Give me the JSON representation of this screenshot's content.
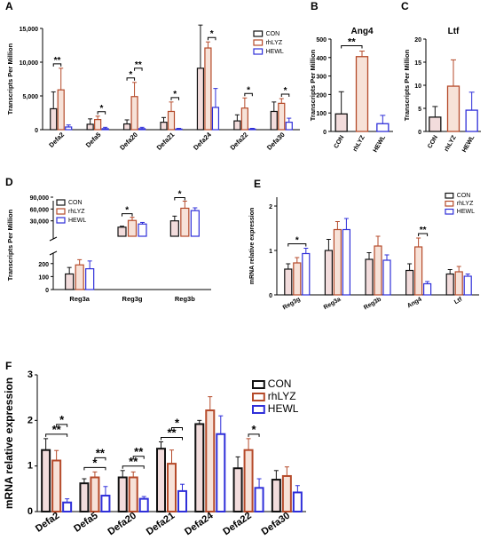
{
  "colors": {
    "CON": "#111111",
    "rhLYZ": "#b54a2a",
    "HEWL": "#2f2fd9",
    "conFill": "#f2dcdc",
    "lyzFill": "#f7e2d8"
  },
  "panels": {
    "A": {
      "letter": "A",
      "chart_data": {
        "type": "bar",
        "title": "",
        "ylabel": "Transcripts Per Million",
        "categories": [
          "Defa2",
          "Defa5",
          "Defa20",
          "Defa21",
          "Defa24",
          "Defa22",
          "Defa30"
        ],
        "yticks": [
          "0",
          "5,000",
          "10,000",
          "15,000"
        ],
        "ylim": [
          0,
          15000
        ],
        "legend": [
          "CON",
          "rhLYZ",
          "HEWL"
        ],
        "legend_position": "top-right",
        "series": [
          {
            "name": "CON",
            "values": [
              3100,
              800,
              850,
              1100,
              9100,
              1300,
              2700
            ],
            "errors": [
              2500,
              800,
              600,
              700,
              6400,
              900,
              1400
            ]
          },
          {
            "name": "rhLYZ",
            "values": [
              5900,
              1500,
              4900,
              2700,
              12100,
              3200,
              3900
            ],
            "errors": [
              3200,
              500,
              2100,
              1400,
              900,
              1500,
              700
            ]
          },
          {
            "name": "HEWL",
            "values": [
              400,
              150,
              150,
              100,
              3300,
              100,
              1100
            ],
            "errors": [
              300,
              200,
              200,
              100,
              2800,
              100,
              600
            ]
          }
        ],
        "significance": [
          {
            "cat": 0,
            "from": 0,
            "to": 1,
            "label": "**"
          },
          {
            "cat": 1,
            "from": 1,
            "to": 2,
            "label": "*"
          },
          {
            "cat": 2,
            "from": 0,
            "to": 1,
            "label": "*"
          },
          {
            "cat": 2,
            "from": 1,
            "to": 2,
            "label": "**"
          },
          {
            "cat": 3,
            "from": 1,
            "to": 2,
            "label": "*"
          },
          {
            "cat": 4,
            "from": 1,
            "to": 2,
            "label": "*"
          },
          {
            "cat": 5,
            "from": 1,
            "to": 2,
            "label": "*"
          },
          {
            "cat": 6,
            "from": 1,
            "to": 2,
            "label": "*"
          }
        ]
      }
    },
    "B": {
      "letter": "B",
      "chart_data": {
        "type": "bar",
        "title": "Ang4",
        "ylabel": "Transcripts Per Million",
        "categories": [
          "CON",
          "rhLYZ",
          "HEWL"
        ],
        "yticks": [
          "0",
          "100",
          "200",
          "300",
          "400",
          "500"
        ],
        "ylim": [
          0,
          500
        ],
        "values": [
          95,
          405,
          42
        ],
        "errors": [
          120,
          30,
          45
        ],
        "significance": [
          {
            "from": 0,
            "to": 1,
            "label": "**"
          }
        ]
      }
    },
    "C": {
      "letter": "C",
      "chart_data": {
        "type": "bar",
        "title": "Ltf",
        "ylabel": "Transcripts Per Million",
        "categories": [
          "CON",
          "rhLYZ",
          "HEWL"
        ],
        "yticks": [
          "0",
          "5",
          "10",
          "15",
          "20"
        ],
        "ylim": [
          0,
          20
        ],
        "values": [
          3.1,
          9.8,
          4.6
        ],
        "errors": [
          2.3,
          5.7,
          3.9
        ]
      }
    },
    "D": {
      "letter": "D",
      "chart_data": {
        "type": "bar",
        "title": "",
        "ylabel": "Transcripts Per Million",
        "categories": [
          "Reg3a",
          "Reg3g",
          "Reg3b"
        ],
        "yticks_low": [
          "0",
          "100",
          "200"
        ],
        "yticks_high": [
          "30,000",
          "60,000",
          "90,000"
        ],
        "ylim_low": [
          0,
          260
        ],
        "ylim_high": [
          0,
          90000
        ],
        "legend": [
          "CON",
          "rhLYZ",
          "HEWL"
        ],
        "legend_position": "top-left",
        "series": [
          {
            "name": "CON",
            "values": [
              120,
              14000,
              30000
            ],
            "errors": [
              50,
              2500,
              12000
            ]
          },
          {
            "name": "rhLYZ",
            "values": [
              190,
              31000,
              62000
            ],
            "errors": [
              40,
              8000,
              18000
            ]
          },
          {
            "name": "HEWL",
            "values": [
              160,
              22000,
              56000
            ],
            "errors": [
              60,
              4000,
              7000
            ]
          }
        ],
        "significance": [
          {
            "cat": 1,
            "from": 0,
            "to": 1,
            "label": "*"
          },
          {
            "cat": 2,
            "from": 0,
            "to": 1,
            "label": "*"
          }
        ]
      }
    },
    "E": {
      "letter": "E",
      "chart_data": {
        "type": "bar",
        "title": "",
        "ylabel": "mRNA relative expression",
        "categories": [
          "Reg3g",
          "Reg3a",
          "Reg3b",
          "Ang4",
          "Ltf"
        ],
        "yticks": [
          "0",
          "1",
          "2"
        ],
        "ylim": [
          0,
          2.2
        ],
        "legend": [
          "CON",
          "rhLYZ",
          "HEWL"
        ],
        "legend_position": "top-right",
        "series": [
          {
            "name": "CON",
            "values": [
              0.58,
              1.0,
              0.8,
              0.55,
              0.47
            ],
            "errors": [
              0.12,
              0.25,
              0.15,
              0.15,
              0.1
            ]
          },
          {
            "name": "rhLYZ",
            "values": [
              0.72,
              1.47,
              1.1,
              1.08,
              0.52
            ],
            "errors": [
              0.12,
              0.18,
              0.22,
              0.2,
              0.12
            ]
          },
          {
            "name": "HEWL",
            "values": [
              0.93,
              1.47,
              0.78,
              0.25,
              0.42
            ],
            "errors": [
              0.12,
              0.25,
              0.12,
              0.05,
              0.05
            ]
          }
        ],
        "significance": [
          {
            "cat": 0,
            "from": 0,
            "to": 2,
            "label": "*"
          },
          {
            "cat": 3,
            "from": 1,
            "to": 2,
            "label": "**"
          }
        ]
      }
    },
    "F": {
      "letter": "F",
      "chart_data": {
        "type": "bar",
        "title": "",
        "ylabel": "mRNA relative expression",
        "categories": [
          "Defa2",
          "Defa5",
          "Defa20",
          "Defa21",
          "Defa24",
          "Defa22",
          "Defa30"
        ],
        "yticks": [
          "0",
          "1",
          "2",
          "3"
        ],
        "ylim": [
          0,
          3
        ],
        "legend": [
          "CON",
          "rhLYZ",
          "HEWL"
        ],
        "legend_position": "top-right",
        "series": [
          {
            "name": "CON",
            "values": [
              1.35,
              0.62,
              0.75,
              1.38,
              1.92,
              0.95,
              0.7
            ],
            "errors": [
              0.25,
              0.1,
              0.15,
              0.15,
              0.08,
              0.25,
              0.2
            ]
          },
          {
            "name": "rhLYZ",
            "values": [
              1.12,
              0.75,
              0.75,
              1.05,
              2.22,
              1.35,
              0.78
            ],
            "errors": [
              0.22,
              0.12,
              0.12,
              0.3,
              0.3,
              0.25,
              0.2
            ]
          },
          {
            "name": "HEWL",
            "values": [
              0.2,
              0.35,
              0.28,
              0.45,
              1.7,
              0.52,
              0.42
            ],
            "errors": [
              0.08,
              0.2,
              0.05,
              0.15,
              0.4,
              0.2,
              0.15
            ]
          }
        ],
        "significance": [
          {
            "cat": 0,
            "from": 0,
            "to": 2,
            "label": "**"
          },
          {
            "cat": 0,
            "from": 1,
            "to": 2,
            "label": "*"
          },
          {
            "cat": 1,
            "from": 0,
            "to": 2,
            "label": "*"
          },
          {
            "cat": 1,
            "from": 1,
            "to": 2,
            "label": "**"
          },
          {
            "cat": 2,
            "from": 0,
            "to": 2,
            "label": "**"
          },
          {
            "cat": 2,
            "from": 1,
            "to": 2,
            "label": "**"
          },
          {
            "cat": 3,
            "from": 0,
            "to": 2,
            "label": "**"
          },
          {
            "cat": 3,
            "from": 1,
            "to": 2,
            "label": "*"
          },
          {
            "cat": 5,
            "from": 1,
            "to": 2,
            "label": "*"
          }
        ]
      }
    }
  }
}
